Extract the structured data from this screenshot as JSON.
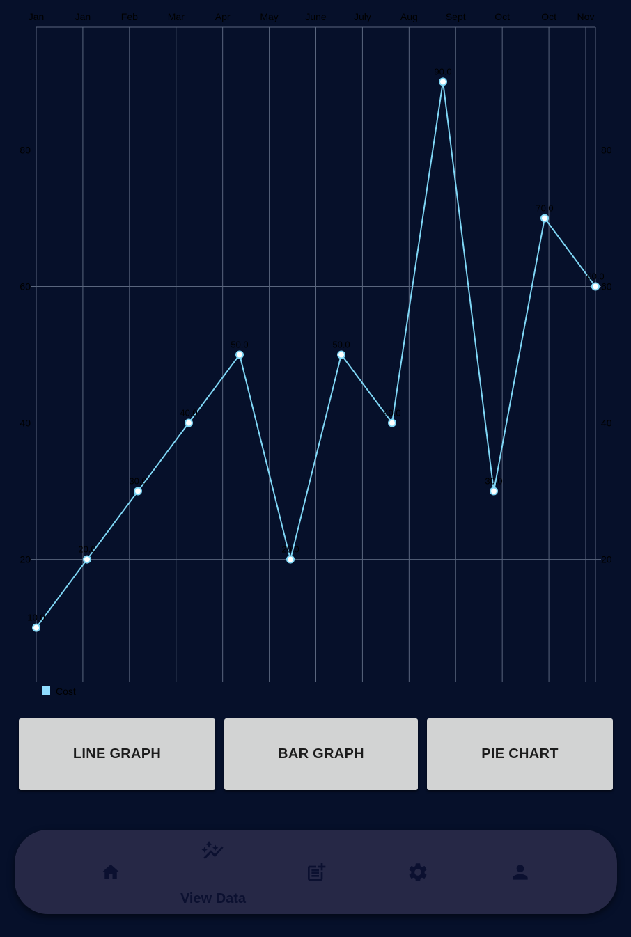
{
  "chart_data": {
    "type": "line",
    "categories": [
      "Jan",
      "Jan",
      "Feb",
      "Mar",
      "Apr",
      "May",
      "June",
      "July",
      "Aug",
      "Sept",
      "Oct",
      "Oct",
      "Nov"
    ],
    "series": [
      {
        "name": "Cost",
        "x": [
          0,
          1,
          2,
          3,
          4,
          5,
          6,
          7,
          8,
          9,
          10,
          11
        ],
        "values": [
          10,
          20,
          30,
          40,
          50,
          20,
          50,
          40,
          90,
          30,
          70,
          60
        ],
        "point_labels": [
          "10.0",
          "20.0",
          "30.0",
          "40.0",
          "50.0",
          "20.0",
          "50.0",
          "40.0",
          "90.0",
          "30.0",
          "70.0",
          "60.0"
        ]
      }
    ],
    "y_ticks": [
      "20",
      "40",
      "60",
      "80"
    ],
    "ylim": [
      2,
      98
    ],
    "grid": true,
    "legend": "bottom-left",
    "colors": {
      "line": "#7fd6f5",
      "grid": "#59657d",
      "legend_swatch": "#8fdcff",
      "axis_text": "#000000",
      "background": "#06102a"
    }
  },
  "buttons": {
    "line_graph": "LINE GRAPH",
    "bar_graph": "BAR GRAPH",
    "pie_chart": "PIE CHART"
  },
  "nav": {
    "items": [
      {
        "icon": "home-icon"
      },
      {
        "icon": "auto-graph-icon",
        "label": "View Data"
      },
      {
        "icon": "post-add-icon"
      },
      {
        "icon": "gear-icon"
      },
      {
        "icon": "person-icon"
      }
    ],
    "active_label": "View Data",
    "icon_color": "#0b1030"
  }
}
